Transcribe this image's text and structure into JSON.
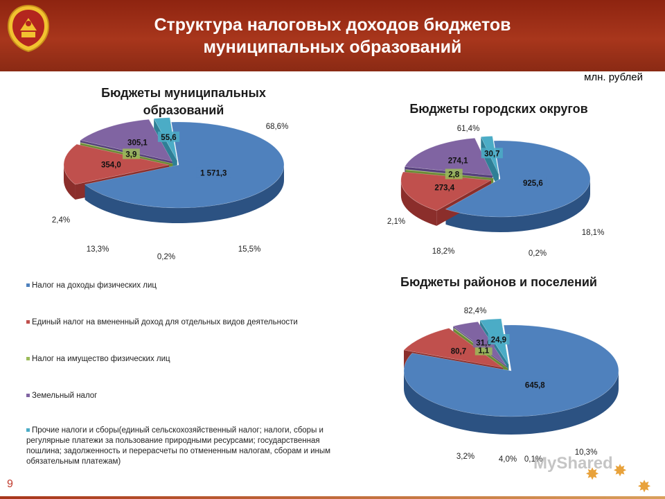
{
  "header": {
    "title_line1": "Структура налоговых доходов бюджетов",
    "title_line2": "муниципальных образований"
  },
  "units": "млн. рублей",
  "legend": [
    {
      "label": "Налог на доходы физических лиц",
      "color": "#4f81bd"
    },
    {
      "label": "Единый налог на вмененный доход для отдельных видов деятельности",
      "color": "#c0504d"
    },
    {
      "label": "Налог на имущество физических лиц",
      "color": "#9bbb59"
    },
    {
      "label": "Земельный налог",
      "color": "#8064a2"
    },
    {
      "label": "Прочие налоги и сборы(единый сельскохозяйственный налог; налоги, сборы и регулярные платежи за пользование природными ресурсами; государственная пошлина; задолженность и перерасчеты по отмененным налогам, сборам и иным обязательным платежам)",
      "color": "#4bacc6"
    }
  ],
  "chart_data": [
    {
      "type": "pie",
      "title": "Бюджеты муниципальных образований",
      "categories": [
        "Налог на доходы физических лиц",
        "Единый налог на вмененный доход для отдельных видов деятельности",
        "Налог на имущество физических лиц",
        "Земельный налог",
        "Прочие налоги и сборы"
      ],
      "values": [
        1571.3,
        354.0,
        3.9,
        305.1,
        55.6
      ],
      "value_labels": [
        "1 571,3",
        "354,0",
        "3,9",
        "305,1",
        "55,6"
      ],
      "percent_labels": [
        "68,6%",
        "15,5%",
        "0,2%",
        "13,3%",
        "2,4%"
      ]
    },
    {
      "type": "pie",
      "title": "Бюджеты городских округов",
      "categories": [
        "Налог на доходы физических лиц",
        "Единый налог на вмененный доход для отдельных видов деятельности",
        "Налог на имущество физических лиц",
        "Земельный налог",
        "Прочие налоги и сборы"
      ],
      "values": [
        925.6,
        273.4,
        2.8,
        274.1,
        30.7
      ],
      "value_labels": [
        "925,6",
        "273,4",
        "2,8",
        "274,1",
        "30,7"
      ],
      "percent_labels": [
        "61,4%",
        "18,1%",
        "0,2%",
        "18,2%",
        "2,1%"
      ]
    },
    {
      "type": "pie",
      "title": "Бюджеты районов и поселений",
      "categories": [
        "Налог на доходы физических лиц",
        "Единый налог на вмененный доход для отдельных видов деятельности",
        "Налог на имущество физических лиц",
        "Земельный налог",
        "Прочие налоги и сборы"
      ],
      "values": [
        645.8,
        80.7,
        1.1,
        31.0,
        24.9
      ],
      "value_labels": [
        "645,8",
        "80,7",
        "1,1",
        "31,0",
        "24,9"
      ],
      "percent_labels": [
        "82,4%",
        "10,3%",
        "0,1%",
        "4,0%",
        "3,2%"
      ]
    }
  ],
  "page_number": "9",
  "watermark": "MyShared"
}
